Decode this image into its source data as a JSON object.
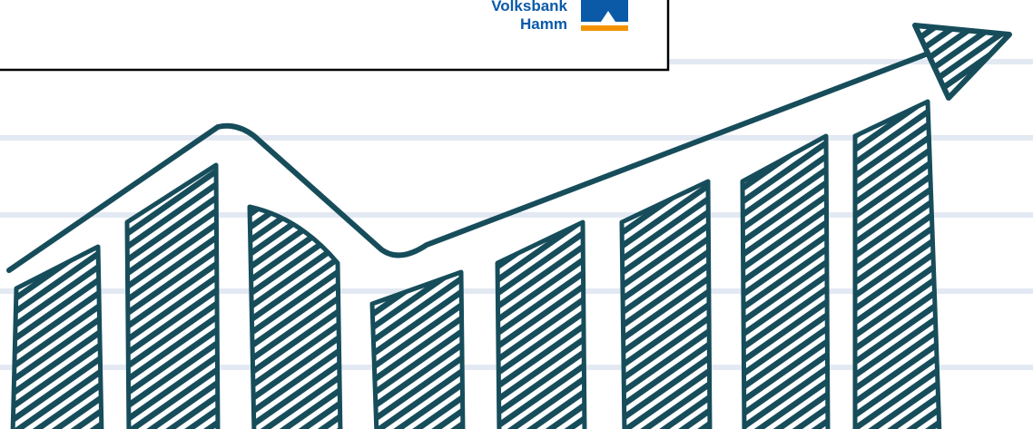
{
  "logo": {
    "line1": "Volksbank",
    "line2": "Hamm"
  }
}
